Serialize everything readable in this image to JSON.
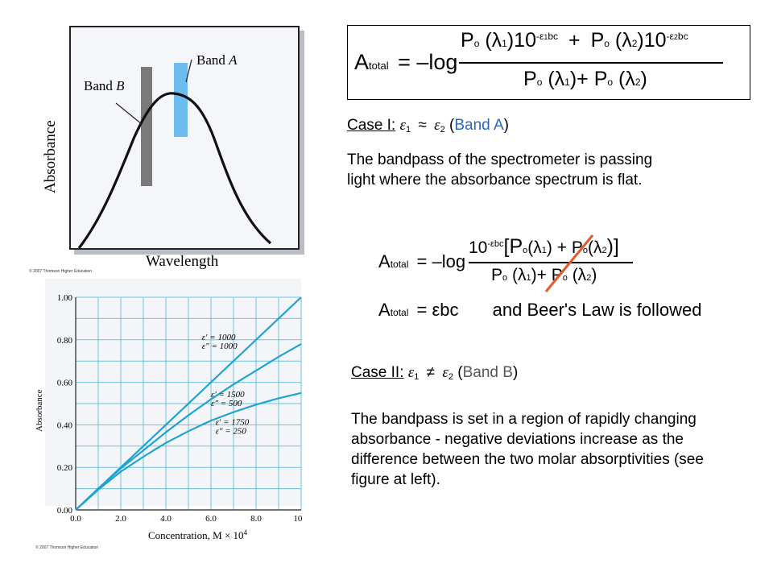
{
  "figure1": {
    "band_a_label": "Band",
    "band_a_letter": "A",
    "band_b_label": "Band",
    "band_b_letter": "B",
    "ylabel": "Absorbance",
    "xlabel": "Wavelength",
    "copyright": "© 2007 Thomson Higher Education"
  },
  "equation_main": {
    "lhs_sub": "total",
    "neglog": "= –log",
    "num_p1": "P",
    "num_p1_sub": "o",
    "num_lam1": "(λ",
    "num_lam1_sub": "1",
    "num_ten1": ")10",
    "exp1": "-ε",
    "exp1_sub": "1",
    "exp1_tail": "bc",
    "plus": "+",
    "num_p2": "P",
    "num_p2_sub": "o",
    "num_lam2": "(λ",
    "num_lam2_sub": "2",
    "num_ten2": ")10",
    "exp2": "-ε",
    "exp2_sub": "2",
    "exp2_tail": "bc",
    "den": "P",
    "den_sub": "o",
    "den_lam1": "(λ",
    "den_lam1_sub": "1",
    "den_plus": ")+ P",
    "den_sub2": "o",
    "den_lam2": "(λ",
    "den_lam2_sub": "2",
    "den_close": ")"
  },
  "case1": {
    "heading": "Case I:",
    "eps1": "ε",
    "eps1_sub": "1",
    "approx": "≈",
    "eps2": "ε",
    "eps2_sub": "2",
    "band_open": "(",
    "band": "Band A",
    "band_close": ")",
    "text": "The bandpass of the spectrometer is passing light where the absorbance spectrum is flat."
  },
  "equation_case1": {
    "lhs_sub": "total",
    "neglog": "= –log",
    "num": "10",
    "num_exp": "-εbc",
    "num_bracket": "[P",
    "num_sub1": "o",
    "num_lam1": "(λ",
    "num_lam1_sub": "1",
    "num_mid": ") + P",
    "num_sub2": "o",
    "num_lam2": "(λ",
    "num_lam2_sub": "2",
    "num_close": ")]",
    "den": "P",
    "den_sub": "o",
    "den_lam1": "(λ",
    "den_lam1_sub": "1",
    "den_mid": ")+ P",
    "den_sub2": "o",
    "den_lam2": "(λ",
    "den_lam2_sub": "2",
    "den_close": ")",
    "final_sub": "total",
    "final_rhs": "= εbc",
    "beer": "and Beer's Law is followed"
  },
  "case2": {
    "heading": "Case II:",
    "eps1": "ε",
    "eps1_sub": "1",
    "neq": "≠",
    "eps2": "ε",
    "eps2_sub": "2",
    "band_open": "(",
    "band": "Band B",
    "band_close": ")",
    "text": "The bandpass is set in a region of rapidly changing absorbance - negative deviations increase as the difference between the two molar absorptivities (see figure at left)."
  },
  "chart_data": {
    "type": "line",
    "xlabel": "Concentration, M × 10",
    "xlabel_sup": "4",
    "ylabel": "Absorbance",
    "xlim": [
      0,
      10
    ],
    "ylim": [
      0,
      1
    ],
    "x_ticks": [
      "0.0",
      "2.0",
      "4.0",
      "6.0",
      "8.0",
      "10.0"
    ],
    "y_ticks": [
      "0.00",
      "0.20",
      "0.40",
      "0.60",
      "0.80",
      "1.00"
    ],
    "grid": true,
    "copyright": "© 2007 Thomson Higher Education",
    "series": [
      {
        "label1": "ε′ = 1000",
        "label2": "ε″ = 1000",
        "x": [
          0,
          10
        ],
        "y": [
          0,
          1.0
        ]
      },
      {
        "label1": "ε′ = 1500",
        "label2": "ε″ = 500",
        "x": [
          0,
          1,
          2,
          3,
          4,
          5,
          6,
          7,
          8,
          9,
          10
        ],
        "y": [
          0,
          0.1,
          0.195,
          0.28,
          0.365,
          0.445,
          0.52,
          0.59,
          0.655,
          0.72,
          0.78
        ]
      },
      {
        "label1": "ε′ = 1750",
        "label2": "ε″ = 250",
        "x": [
          0,
          1,
          2,
          3,
          4,
          5,
          6,
          7,
          8,
          9,
          10
        ],
        "y": [
          0,
          0.095,
          0.18,
          0.25,
          0.315,
          0.37,
          0.42,
          0.46,
          0.495,
          0.525,
          0.55
        ]
      }
    ]
  }
}
